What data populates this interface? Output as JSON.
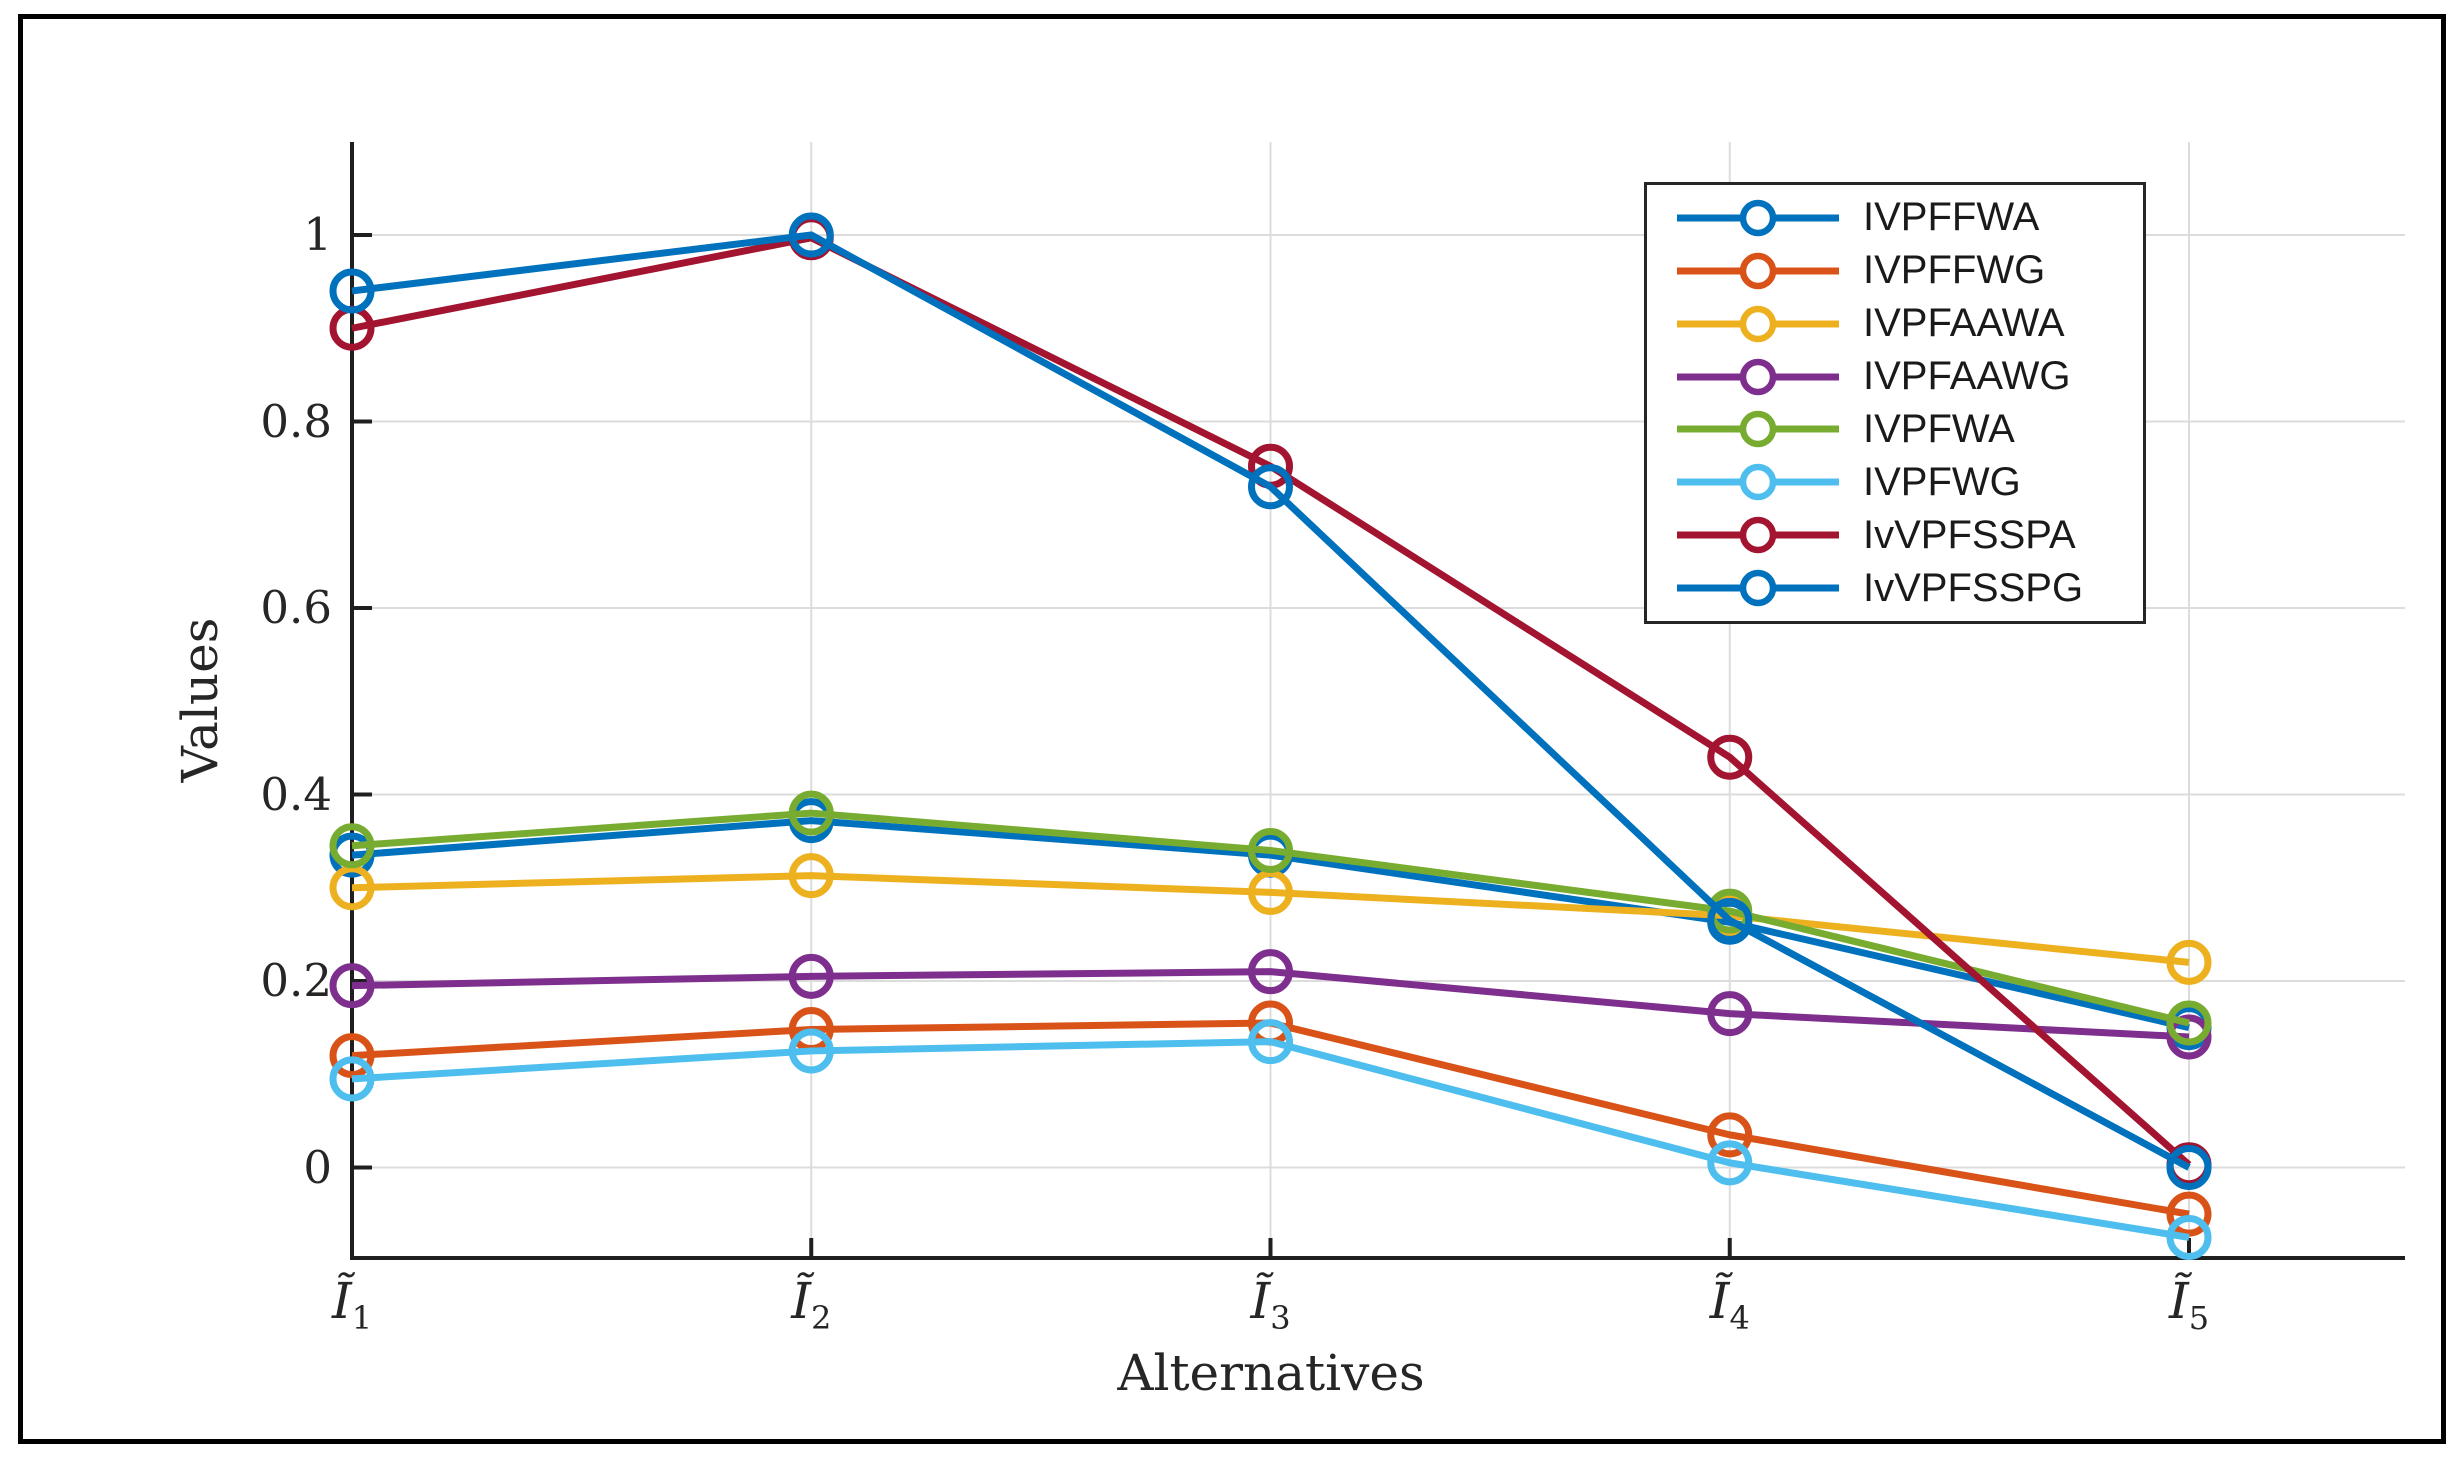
{
  "figure": {
    "background": "#ffffff",
    "border_color": "#000000"
  },
  "axes": {
    "xlabel": "Alternatives",
    "ylabel": "Values",
    "x_tick_base": "Ĩ",
    "x_tick_subs": [
      "1",
      "2",
      "3",
      "4",
      "5"
    ],
    "y_tick_labels": [
      "0",
      "0.2",
      "0.4",
      "0.6",
      "0.8",
      "1"
    ],
    "axis_color": "#1f1f1f",
    "grid_color": "#dcdcdc",
    "tick_color": "#262626"
  },
  "legend": {
    "position": "upper-right",
    "border_color": "#262626",
    "background": "#ffffff",
    "marker": "open-circle"
  },
  "chart_data": {
    "type": "line",
    "title": "",
    "xlabel": "Alternatives",
    "ylabel": "Values",
    "categories": [
      "Ĩ1",
      "Ĩ2",
      "Ĩ3",
      "Ĩ4",
      "Ĩ5"
    ],
    "x": [
      1,
      2,
      3,
      4,
      5
    ],
    "ylim": [
      -0.097,
      1.101
    ],
    "yticks": [
      0,
      0.2,
      0.4,
      0.6,
      0.8,
      1
    ],
    "grid": true,
    "marker": "o",
    "legend_position": "upper-right",
    "series": [
      {
        "name": "IVPFFWA",
        "color": "#0072BD",
        "values": [
          0.335,
          0.372,
          0.335,
          0.263,
          0.15
        ]
      },
      {
        "name": "IVPFFWG",
        "color": "#D95319",
        "values": [
          0.12,
          0.148,
          0.155,
          0.035,
          -0.05
        ]
      },
      {
        "name": "IVPFAAWA",
        "color": "#EDB120",
        "values": [
          0.3,
          0.313,
          0.295,
          0.27,
          0.22
        ]
      },
      {
        "name": "IVPFAAWG",
        "color": "#7E2F8E",
        "values": [
          0.195,
          0.205,
          0.21,
          0.165,
          0.14
        ]
      },
      {
        "name": "IVPFWA",
        "color": "#77AC30",
        "values": [
          0.345,
          0.38,
          0.34,
          0.275,
          0.155
        ]
      },
      {
        "name": "IVPFWG",
        "color": "#4DBEEE",
        "values": [
          0.095,
          0.125,
          0.135,
          0.005,
          -0.075
        ]
      },
      {
        "name": "IvVPFSSPA",
        "color": "#A2142F",
        "values": [
          0.9,
          0.997,
          0.752,
          0.44,
          0.003
        ]
      },
      {
        "name": "IvVPFSSPG",
        "color": "#0072BD",
        "values": [
          0.94,
          1.0,
          0.73,
          0.265,
          0.0
        ]
      }
    ]
  }
}
